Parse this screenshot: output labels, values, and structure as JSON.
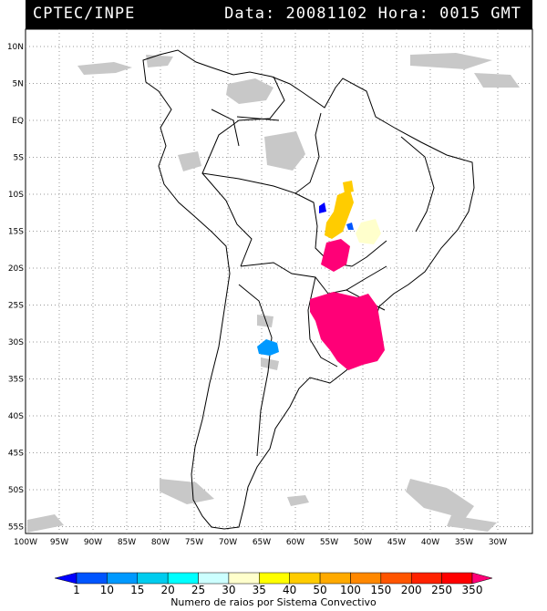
{
  "header": {
    "source": "CPTEC/INPE",
    "date_label": "Data:",
    "date_value": "20081102",
    "hour_label": "Hora:",
    "hour_value": "0015 GMT"
  },
  "map": {
    "lat_ticks": [
      "10N",
      "5N",
      "EQ",
      "5S",
      "10S",
      "15S",
      "20S",
      "25S",
      "30S",
      "35S",
      "40S",
      "45S",
      "50S",
      "55S"
    ],
    "lon_ticks": [
      "100W",
      "95W",
      "90W",
      "85W",
      "80W",
      "75W",
      "70W",
      "65W",
      "60W",
      "55W",
      "50W",
      "45W",
      "40W",
      "35W",
      "30W"
    ]
  },
  "legend": {
    "labels": [
      "1",
      "10",
      "15",
      "20",
      "25",
      "30",
      "35",
      "40",
      "50",
      "100",
      "150",
      "200",
      "250",
      "350"
    ],
    "colors": [
      "#0000ff",
      "#0055ff",
      "#0099ff",
      "#00ccee",
      "#00ffff",
      "#ccffff",
      "#ffffcc",
      "#ffff00",
      "#ffcc00",
      "#ffaa00",
      "#ff8800",
      "#ff5500",
      "#ff2200",
      "#ff0000",
      "#ff0077"
    ],
    "caption": "Numero de raios por Sistema Convectivo"
  }
}
